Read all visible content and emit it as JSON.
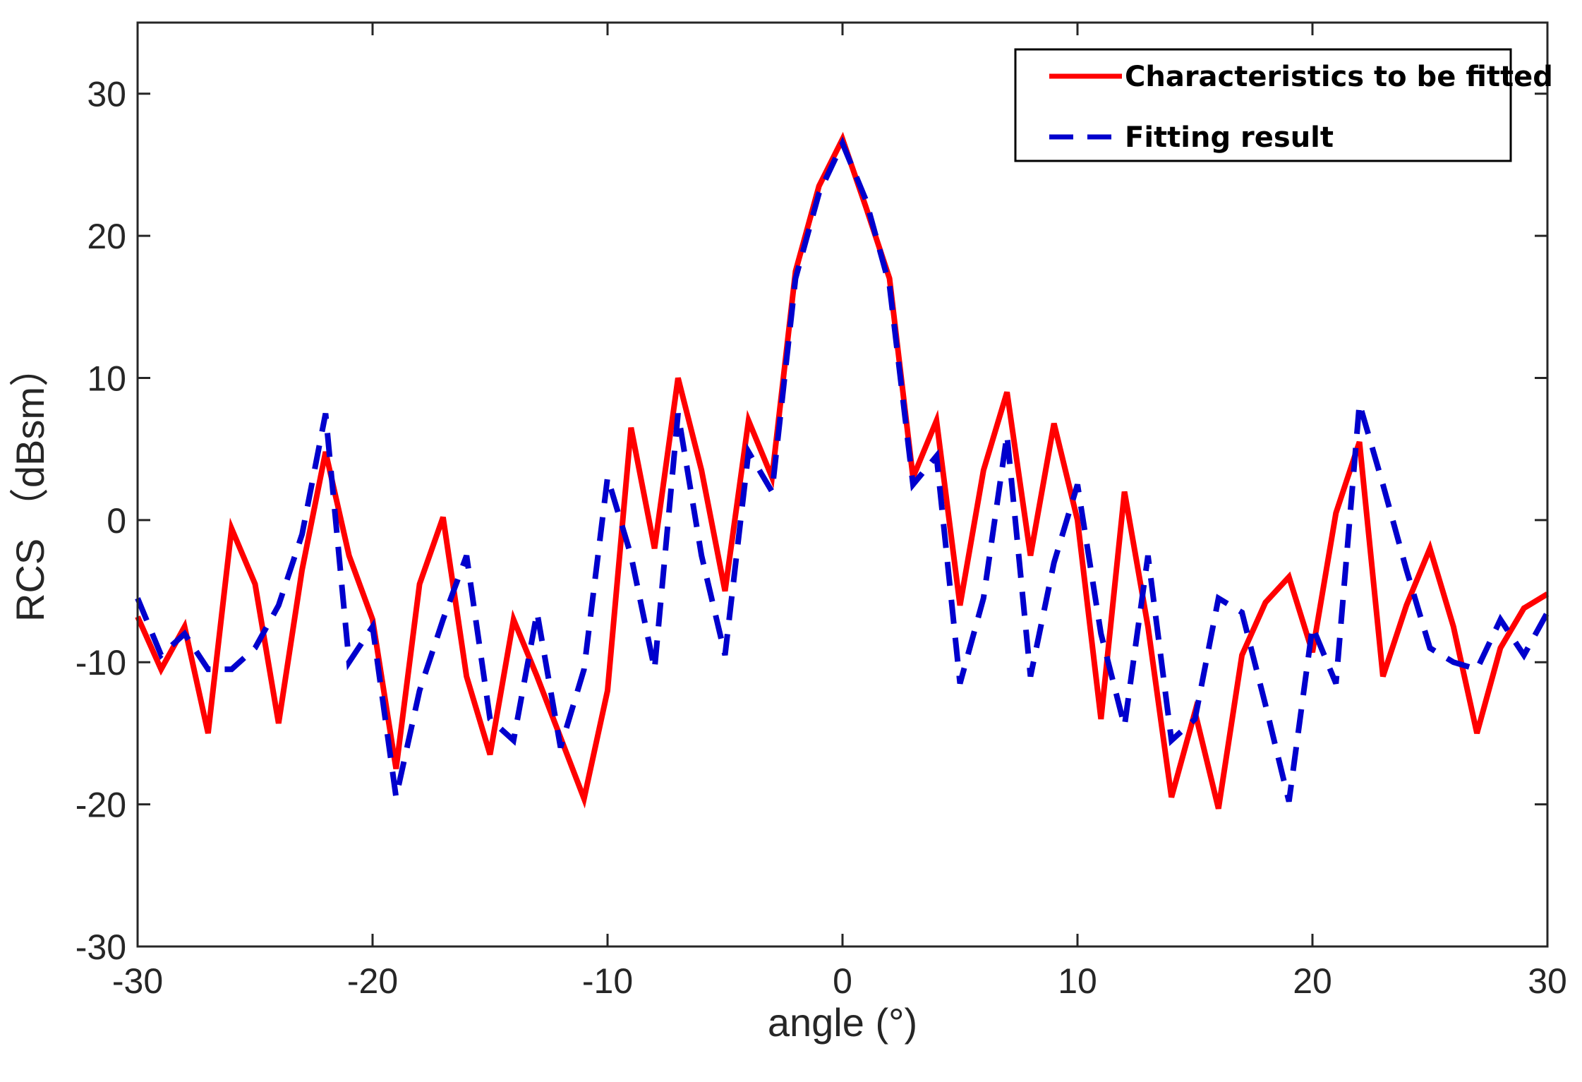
{
  "chart_data": {
    "type": "line",
    "title": "",
    "xlabel": "angle (°)",
    "ylabel": "RCS （dBsm）",
    "xlim": [
      -30,
      30
    ],
    "ylim": [
      -30,
      35
    ],
    "xticks": [
      -30,
      -20,
      -10,
      0,
      10,
      20,
      30
    ],
    "yticks": [
      -30,
      -20,
      -10,
      0,
      10,
      20,
      30
    ],
    "xtick_labels": [
      "-30",
      "-20",
      "-10",
      "0",
      "10",
      "20",
      "30"
    ],
    "ytick_labels": [
      "-30",
      "-20",
      "-10",
      "0",
      "10",
      "20",
      "30"
    ],
    "grid": false,
    "legend_position": "top-right",
    "x": [
      -30,
      -29,
      -28,
      -27,
      -26,
      -25,
      -24,
      -23,
      -22,
      -21,
      -20,
      -19,
      -18,
      -17,
      -16,
      -15,
      -14,
      -13,
      -12,
      -11,
      -10,
      -9,
      -8,
      -7,
      -6,
      -5,
      -4,
      -3,
      -2,
      -1,
      0,
      1,
      2,
      3,
      4,
      5,
      6,
      7,
      8,
      9,
      10,
      11,
      12,
      13,
      14,
      15,
      16,
      17,
      18,
      19,
      20,
      21,
      22,
      23,
      24,
      25,
      26,
      27,
      28,
      29,
      30
    ],
    "series": [
      {
        "name": "Characteristics to be fitted",
        "color": "#ff0000",
        "style": "solid",
        "values": [
          -6.8,
          -10.5,
          -7.5,
          -15.0,
          -0.6,
          -4.5,
          -14.3,
          -3.5,
          4.8,
          -2.5,
          -7.0,
          -17.5,
          -4.5,
          0.2,
          -11.0,
          -16.5,
          -7.0,
          -11.0,
          -15.3,
          -19.6,
          -12.0,
          6.5,
          -2.0,
          10.0,
          3.5,
          -5.0,
          7.0,
          3.0,
          17.5,
          23.5,
          26.8,
          22.0,
          17.0,
          3.0,
          7.0,
          -6.0,
          3.5,
          9.0,
          -2.5,
          6.8,
          0.0,
          -14.0,
          2.0,
          -7.5,
          -19.5,
          -13.5,
          -20.3,
          -9.5,
          -5.8,
          -4.0,
          -9.3,
          0.5,
          5.5,
          -11.0,
          -6.0,
          -2.0,
          -7.5,
          -15.0,
          -9.0,
          -6.2,
          -5.2
        ]
      },
      {
        "name": "Fitting result",
        "color": "#0000cd",
        "style": "dashed",
        "values": [
          -5.5,
          -9.5,
          -8.0,
          -10.5,
          -10.5,
          -9.0,
          -6.0,
          -1.0,
          7.5,
          -10.0,
          -7.5,
          -19.5,
          -12.0,
          -7.0,
          -2.5,
          -14.0,
          -15.5,
          -6.5,
          -16.0,
          -10.5,
          3.0,
          -2.5,
          -10.5,
          7.5,
          -2.5,
          -9.5,
          4.8,
          2.0,
          17.0,
          23.0,
          26.5,
          22.5,
          16.5,
          2.5,
          4.5,
          -11.5,
          -5.5,
          6.0,
          -11.0,
          -3.0,
          2.5,
          -8.0,
          -14.5,
          -2.5,
          -15.5,
          -14.0,
          -5.5,
          -6.5,
          -13.0,
          -19.8,
          -7.5,
          -11.5,
          8.2,
          2.5,
          -3.5,
          -9.0,
          -10.0,
          -10.5,
          -7.0,
          -9.5,
          -6.5
        ]
      }
    ]
  }
}
